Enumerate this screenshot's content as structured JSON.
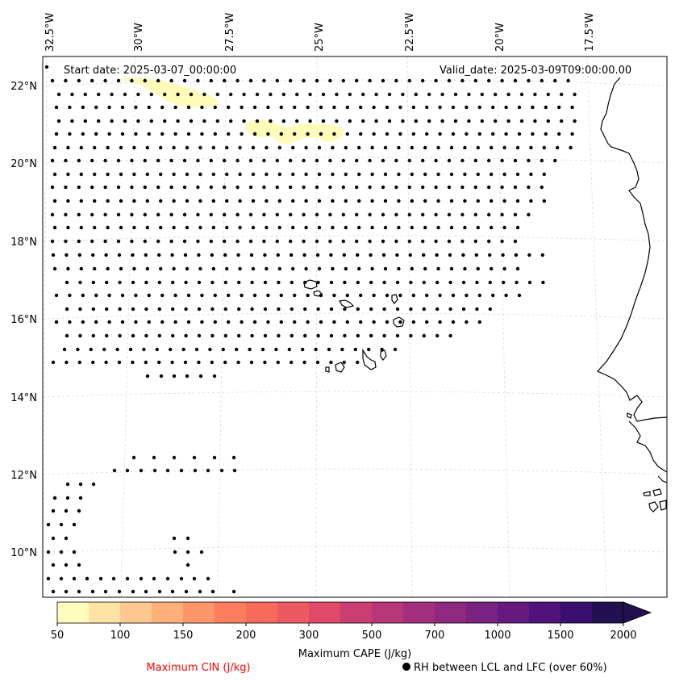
{
  "map": {
    "start_date": "Start date: 2025-03-07_00:00:00",
    "valid_date": "Valid_date: 2025-03-09T09:00:00.00",
    "lon_labels": [
      "32.5°W",
      "30°W",
      "27.5°W",
      "25°W",
      "22.5°W",
      "20°W",
      "17.5°W"
    ],
    "lat_labels": [
      "22°N",
      "20°N",
      "18°N",
      "16°N",
      "14°N",
      "12°N",
      "10°N"
    ],
    "dot_color": "#000000",
    "coast_color": "#000000",
    "cape_patch_color": "#fffbb8"
  },
  "colorbar": {
    "ticks": [
      "50",
      "100",
      "150",
      "200",
      "300",
      "500",
      "700",
      "1000",
      "1500",
      "2000"
    ],
    "colors": [
      "#fffcbc",
      "#fee3a4",
      "#fec890",
      "#feaf7a",
      "#fd9668",
      "#fb7d5b",
      "#f76a5c",
      "#ed5960",
      "#e04a68",
      "#cb3e72",
      "#b73779",
      "#a3307e",
      "#8f2a80",
      "#7b2382",
      "#661a80",
      "#50127b",
      "#3b0f6f",
      "#221150"
    ],
    "label": "Maximum CAPE (J/kg)"
  },
  "legend": {
    "cin_label": "Maximum CIN (J/kg)",
    "cin_color": "#ff0000",
    "rh_label": "RH between LCL and LFC (over 60%)"
  }
}
